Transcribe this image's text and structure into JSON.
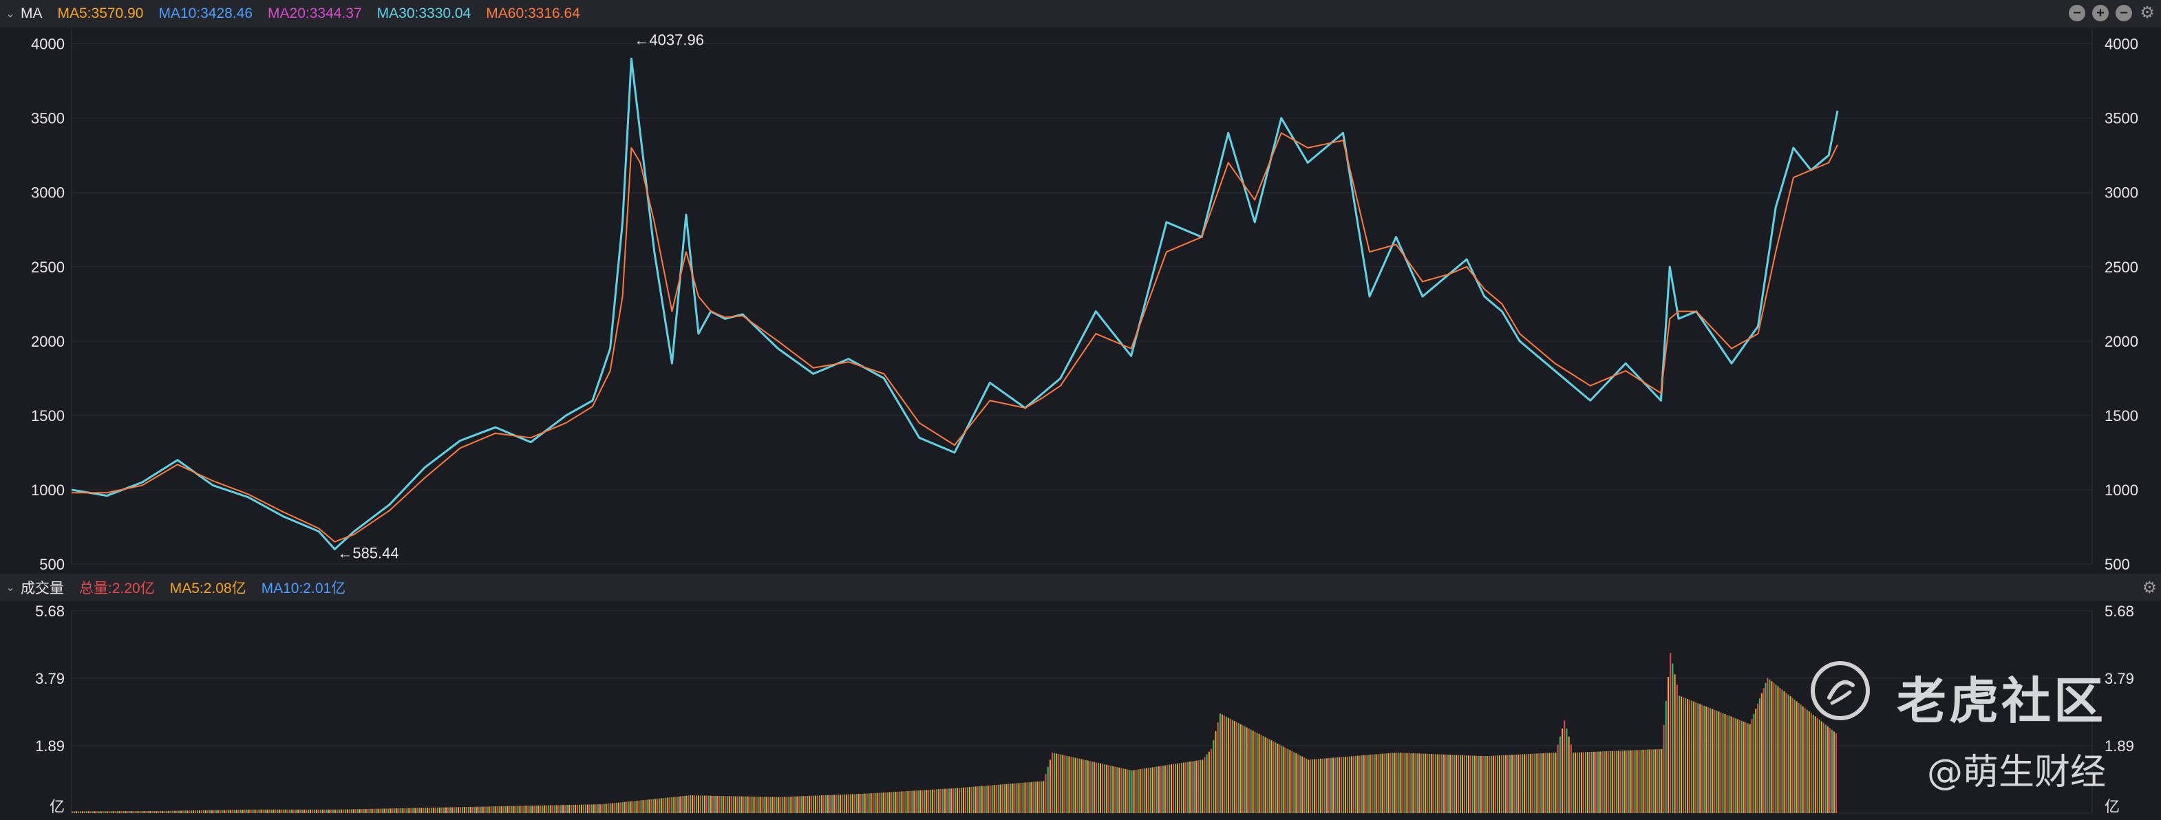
{
  "indicator_bar": {
    "name": "MA",
    "items": [
      {
        "label": "MA5:3570.90",
        "color": "#f5a623"
      },
      {
        "label": "MA10:3428.46",
        "color": "#4a9fff"
      },
      {
        "label": "MA20:3344.37",
        "color": "#d84bd0"
      },
      {
        "label": "MA30:3330.04",
        "color": "#5ed3e8"
      },
      {
        "label": "MA60:3316.64",
        "color": "#ff7a3a"
      }
    ],
    "controls": [
      "−",
      "+",
      "−"
    ]
  },
  "volume_bar": {
    "name": "成交量",
    "items": [
      {
        "label": "总量:2.20亿",
        "color": "#e54b4b"
      },
      {
        "label": "MA5:2.08亿",
        "color": "#f5a623"
      },
      {
        "label": "MA10:2.01亿",
        "color": "#4a9fff"
      }
    ]
  },
  "watermark": {
    "brand": "老虎社区",
    "author": "@萌生财经"
  },
  "chart_data": [
    {
      "type": "line",
      "name": "price",
      "ylim": [
        500,
        4100
      ],
      "yticks": [
        "4000",
        "3500",
        "3000",
        "2500",
        "2000",
        "1500",
        "1000",
        "500"
      ],
      "ytick_values": [
        4000,
        3500,
        3000,
        2500,
        2000,
        1500,
        1000,
        500
      ],
      "annotations": [
        {
          "text": "←4037.96",
          "x": 0.317,
          "y": 4037.96
        },
        {
          "text": "←585.44",
          "x": 0.149,
          "y": 585.44
        }
      ],
      "x": [
        0,
        0.02,
        0.04,
        0.06,
        0.08,
        0.1,
        0.12,
        0.14,
        0.149,
        0.16,
        0.18,
        0.2,
        0.22,
        0.24,
        0.26,
        0.28,
        0.295,
        0.305,
        0.312,
        0.317,
        0.322,
        0.33,
        0.34,
        0.348,
        0.355,
        0.362,
        0.37,
        0.38,
        0.4,
        0.42,
        0.44,
        0.46,
        0.48,
        0.5,
        0.52,
        0.54,
        0.55,
        0.56,
        0.58,
        0.6,
        0.62,
        0.64,
        0.655,
        0.67,
        0.685,
        0.7,
        0.72,
        0.735,
        0.75,
        0.765,
        0.78,
        0.79,
        0.8,
        0.81,
        0.82,
        0.84,
        0.86,
        0.88,
        0.9,
        0.905,
        0.91,
        0.92,
        0.94,
        0.955,
        0.965,
        0.975,
        0.985,
        0.995,
        1.0
      ],
      "series": [
        {
          "color": "#5ed3e8",
          "values": [
            1000,
            960,
            1050,
            1200,
            1030,
            950,
            820,
            720,
            600,
            720,
            900,
            1150,
            1330,
            1420,
            1320,
            1500,
            1600,
            1950,
            2800,
            3900,
            3400,
            2600,
            1850,
            2850,
            2050,
            2200,
            2150,
            2180,
            1950,
            1780,
            1880,
            1750,
            1350,
            1250,
            1720,
            1550,
            1650,
            1750,
            2200,
            1900,
            2800,
            2700,
            3400,
            2800,
            3500,
            3200,
            3400,
            2300,
            2700,
            2300,
            2450,
            2550,
            2300,
            2200,
            2000,
            1800,
            1600,
            1850,
            1600,
            2500,
            2150,
            2200,
            1850,
            2100,
            2900,
            3300,
            3150,
            3250,
            3550
          ]
        },
        {
          "color": "#ff7a3a",
          "values": [
            980,
            980,
            1030,
            1170,
            1060,
            970,
            850,
            740,
            650,
            700,
            860,
            1080,
            1280,
            1380,
            1350,
            1450,
            1560,
            1800,
            2300,
            3300,
            3200,
            2800,
            2200,
            2600,
            2300,
            2200,
            2160,
            2170,
            2000,
            1820,
            1860,
            1780,
            1450,
            1300,
            1600,
            1550,
            1620,
            1700,
            2050,
            1950,
            2600,
            2700,
            3200,
            2950,
            3400,
            3300,
            3350,
            2600,
            2650,
            2400,
            2450,
            2500,
            2350,
            2250,
            2050,
            1850,
            1700,
            1800,
            1650,
            2150,
            2200,
            2200,
            1950,
            2050,
            2600,
            3100,
            3150,
            3200,
            3320
          ]
        }
      ]
    },
    {
      "type": "bar",
      "name": "volume",
      "ylim": [
        0,
        5.68
      ],
      "yticks": [
        "5.68",
        "3.79",
        "1.89",
        "亿"
      ],
      "ytick_values": [
        5.68,
        3.79,
        1.89,
        0
      ],
      "x": [
        0,
        0.05,
        0.1,
        0.15,
        0.2,
        0.25,
        0.3,
        0.35,
        0.4,
        0.45,
        0.5,
        0.55,
        0.555,
        0.6,
        0.64,
        0.645,
        0.65,
        0.7,
        0.75,
        0.8,
        0.84,
        0.845,
        0.85,
        0.9,
        0.905,
        0.91,
        0.95,
        0.96,
        1.0
      ],
      "values": [
        0.05,
        0.06,
        0.1,
        0.1,
        0.15,
        0.2,
        0.25,
        0.5,
        0.45,
        0.55,
        0.7,
        0.9,
        1.7,
        1.2,
        1.5,
        1.8,
        2.8,
        1.5,
        1.7,
        1.6,
        1.7,
        2.6,
        1.7,
        1.8,
        4.5,
        3.3,
        2.5,
        3.8,
        2.2
      ]
    }
  ]
}
